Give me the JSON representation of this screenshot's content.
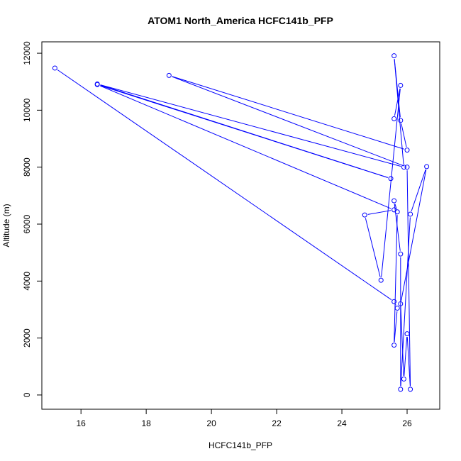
{
  "chart_data": {
    "type": "line",
    "title": "ATOM1 North_America HCFC141b_PFP",
    "xlabel": "HCFC141b_PFP",
    "ylabel": "Altitude (m)",
    "xlim": [
      14.8,
      27.0
    ],
    "ylim": [
      -500,
      12400
    ],
    "xticks": [
      16,
      18,
      20,
      22,
      24,
      26
    ],
    "yticks": [
      0,
      2000,
      4000,
      6000,
      8000,
      10000,
      12000
    ],
    "line_color": "#0000ff",
    "marker": "open-circle",
    "grid": false,
    "series": [
      {
        "name": "",
        "points": [
          {
            "x": 15.2,
            "y": 11480
          },
          {
            "x": 25.6,
            "y": 3280
          },
          {
            "x": 25.7,
            "y": 3050
          },
          {
            "x": 25.6,
            "y": 1750
          },
          {
            "x": 25.7,
            "y": 6430
          },
          {
            "x": 25.6,
            "y": 6820
          },
          {
            "x": 25.8,
            "y": 4950
          },
          {
            "x": 25.8,
            "y": 200
          },
          {
            "x": 26.1,
            "y": 6350
          },
          {
            "x": 26.6,
            "y": 8020
          },
          {
            "x": 25.8,
            "y": 3200
          },
          {
            "x": 25.9,
            "y": 560
          },
          {
            "x": 26.0,
            "y": 2150
          },
          {
            "x": 26.1,
            "y": 200
          },
          {
            "x": 26.0,
            "y": 8000
          },
          {
            "x": 18.7,
            "y": 11220
          },
          {
            "x": 26.0,
            "y": 8600
          },
          {
            "x": 25.8,
            "y": 9640
          },
          {
            "x": 25.6,
            "y": 11910
          },
          {
            "x": 25.9,
            "y": 8000
          },
          {
            "x": 16.5,
            "y": 10920
          },
          {
            "x": 25.5,
            "y": 7600
          },
          {
            "x": 16.5,
            "y": 10900
          },
          {
            "x": 25.6,
            "y": 6500
          },
          {
            "x": 24.7,
            "y": 6320
          },
          {
            "x": 25.2,
            "y": 4030
          },
          {
            "x": 25.8,
            "y": 10870
          },
          {
            "x": 25.6,
            "y": 9700
          }
        ]
      }
    ]
  }
}
